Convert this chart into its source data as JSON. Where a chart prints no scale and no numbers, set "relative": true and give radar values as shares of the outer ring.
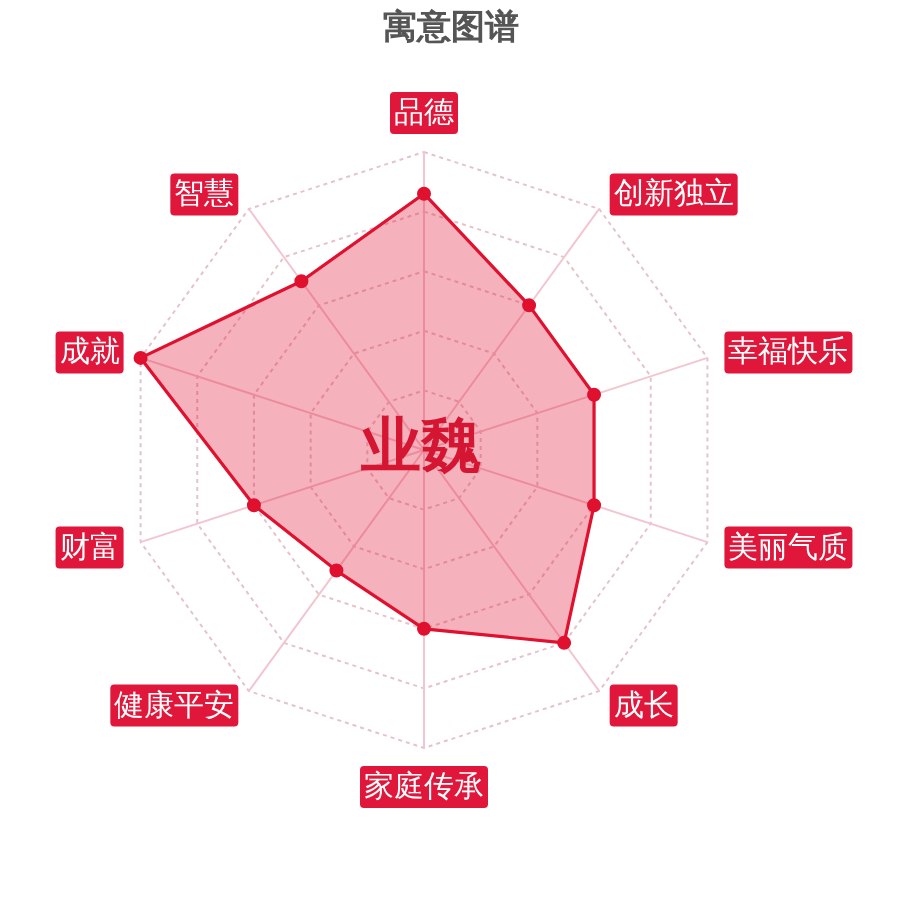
{
  "chart_data": {
    "type": "radar",
    "title": "寓意图谱",
    "relative": true,
    "grid": true,
    "marker": "circle",
    "categories": [
      "品德",
      "创新独立",
      "幸福快乐",
      "美丽气质",
      "成长",
      "家庭传承",
      "健康平安",
      "财富",
      "成就",
      "智慧"
    ],
    "series": [
      {
        "color": "#e0102f",
        "values": [
          0.86,
          0.6,
          0.6,
          0.6,
          0.8,
          0.6,
          0.5,
          0.6,
          1.0,
          0.7
        ]
      }
    ],
    "annotations": [
      "业魏"
    ]
  }
}
